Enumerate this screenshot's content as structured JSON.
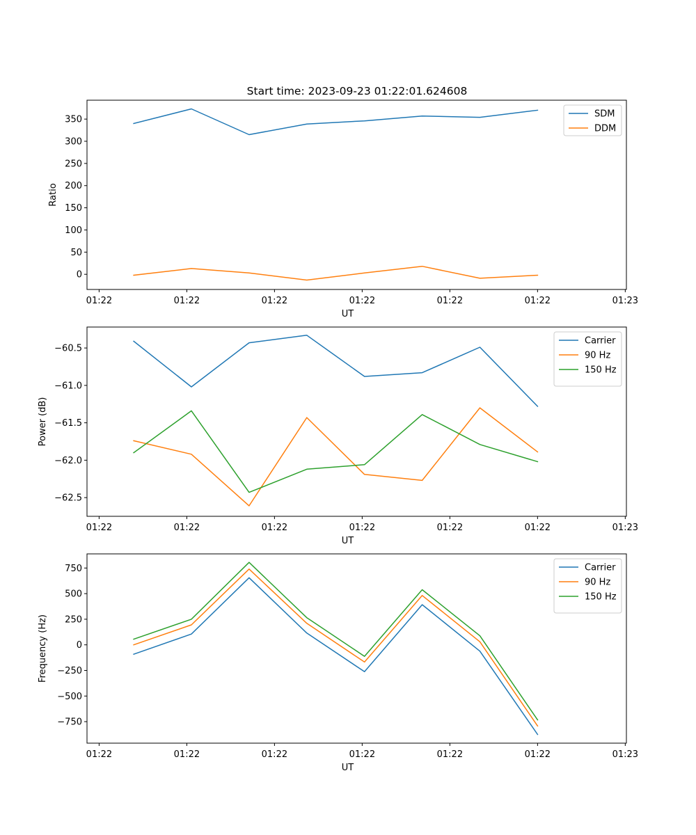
{
  "title": "Start time: 2023-09-23 01:22:01.624608",
  "colors": {
    "blue": "#1f77b4",
    "orange": "#ff7f0e",
    "green": "#2ca02c"
  },
  "chart_data": [
    {
      "type": "line",
      "name": "ratio",
      "title": "Start time: 2023-09-23 01:22:01.624608",
      "xlabel": "UT",
      "ylabel": "Ratio",
      "x": [
        1,
        2,
        3,
        4,
        5,
        6,
        7,
        8
      ],
      "xlim": [
        0.19,
        9.54
      ],
      "xticks": [
        0.4,
        1.92,
        3.44,
        4.96,
        6.48,
        8.0,
        9.52
      ],
      "xtick_labels": [
        "01:22",
        "01:22",
        "01:22",
        "01:22",
        "01:22",
        "01:22",
        "01:23"
      ],
      "ylim": [
        -34.2,
        392.6
      ],
      "yticks": [
        0,
        50,
        100,
        150,
        200,
        250,
        300,
        350
      ],
      "ytick_labels": [
        "0",
        "50",
        "100",
        "150",
        "200",
        "250",
        "300",
        "350"
      ],
      "legend": "upper right",
      "series": [
        {
          "name": "SDM",
          "color": "#1f77b4",
          "values": [
            340,
            373,
            315,
            339,
            346,
            357,
            354,
            370
          ]
        },
        {
          "name": "DDM",
          "color": "#ff7f0e",
          "values": [
            -2,
            13,
            3,
            -13,
            3,
            18,
            -9,
            -2
          ]
        }
      ]
    },
    {
      "type": "line",
      "name": "power",
      "title": "",
      "xlabel": "UT",
      "ylabel": "Power (dB)",
      "x": [
        1,
        2,
        3,
        4,
        5,
        6,
        7,
        8
      ],
      "xlim": [
        0.19,
        9.54
      ],
      "xticks": [
        0.4,
        1.92,
        3.44,
        4.96,
        6.48,
        8.0,
        9.52
      ],
      "xtick_labels": [
        "01:22",
        "01:22",
        "01:22",
        "01:22",
        "01:22",
        "01:22",
        "01:23"
      ],
      "ylim": [
        -62.75,
        -60.22
      ],
      "yticks": [
        -62.5,
        -62.0,
        -61.5,
        -61.0,
        -60.5
      ],
      "ytick_labels": [
        "−62.5",
        "−62.0",
        "−61.5",
        "−61.0",
        "−60.5"
      ],
      "legend": "upper right",
      "series": [
        {
          "name": "Carrier",
          "color": "#1f77b4",
          "values": [
            -60.41,
            -61.02,
            -60.43,
            -60.33,
            -60.88,
            -60.83,
            -60.49,
            -61.28
          ]
        },
        {
          "name": "90 Hz",
          "color": "#ff7f0e",
          "values": [
            -61.74,
            -61.92,
            -62.61,
            -61.43,
            -62.19,
            -62.27,
            -61.3,
            -61.89
          ]
        },
        {
          "name": "150 Hz",
          "color": "#2ca02c",
          "values": [
            -61.9,
            -61.34,
            -62.43,
            -62.12,
            -62.06,
            -61.39,
            -61.79,
            -62.02
          ]
        }
      ]
    },
    {
      "type": "line",
      "name": "frequency",
      "title": "",
      "xlabel": "UT",
      "ylabel": "Frequency (Hz)",
      "x": [
        1,
        2,
        3,
        4,
        5,
        6,
        7,
        8
      ],
      "xlim": [
        0.19,
        9.54
      ],
      "xticks": [
        0.4,
        1.92,
        3.44,
        4.96,
        6.48,
        8.0,
        9.52
      ],
      "xtick_labels": [
        "01:22",
        "01:22",
        "01:22",
        "01:22",
        "01:22",
        "01:22",
        "01:23"
      ],
      "ylim": [
        -960,
        888
      ],
      "yticks": [
        -750,
        -500,
        -250,
        0,
        250,
        500,
        750
      ],
      "ytick_labels": [
        "−750",
        "−500",
        "−250",
        "0",
        "250",
        "500",
        "750"
      ],
      "legend": "upper right",
      "series": [
        {
          "name": "Carrier",
          "color": "#1f77b4",
          "values": [
            -92,
            105,
            655,
            115,
            -262,
            392,
            -62,
            -875
          ]
        },
        {
          "name": "90 Hz",
          "color": "#ff7f0e",
          "values": [
            0,
            195,
            740,
            210,
            -168,
            482,
            30,
            -792
          ]
        },
        {
          "name": "150 Hz",
          "color": "#2ca02c",
          "values": [
            55,
            250,
            805,
            265,
            -112,
            538,
            88,
            -733
          ]
        }
      ]
    }
  ]
}
